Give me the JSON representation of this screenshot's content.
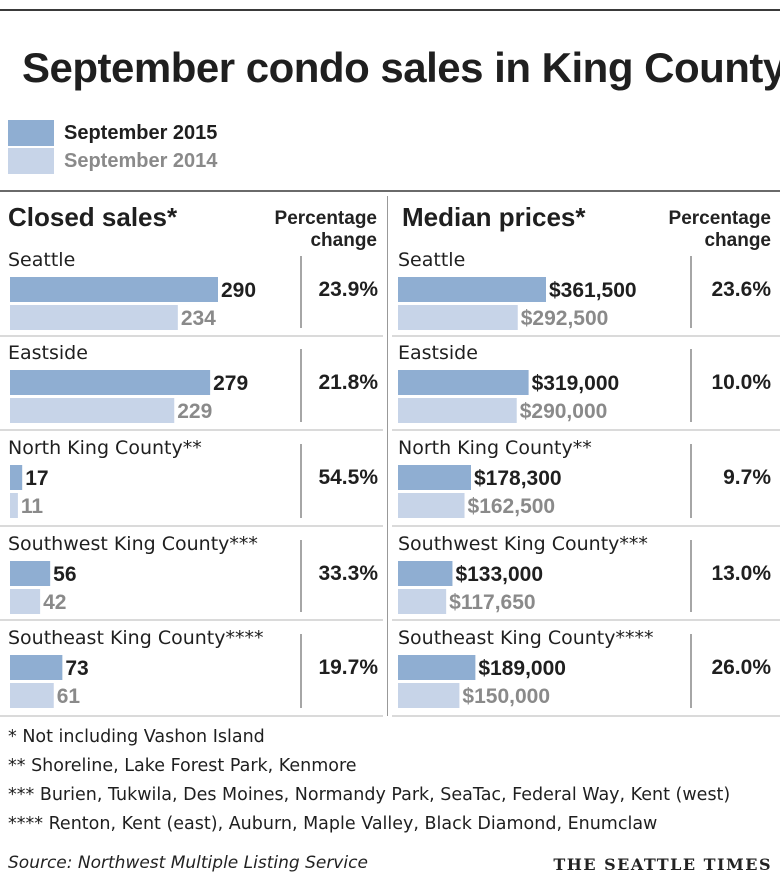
{
  "chart_data": {
    "type": "bar",
    "title": "September condo sales in King County",
    "legend": {
      "items": [
        {
          "label": "September 2015",
          "color": "#8faed2"
        },
        {
          "label": "September 2014",
          "color": "#c7d4e8"
        }
      ]
    },
    "panels": [
      {
        "title": "Closed sales*",
        "change_header": "Percentage change",
        "series": [
          {
            "name": "September 2015",
            "values": [
              290,
              279,
              17,
              56,
              73
            ]
          },
          {
            "name": "September 2014",
            "values": [
              234,
              229,
              11,
              42,
              61
            ]
          }
        ],
        "labels_2015": [
          "290",
          "279",
          "17",
          "56",
          "73"
        ],
        "labels_2014": [
          "234",
          "229",
          "11",
          "42",
          "61"
        ],
        "changes": [
          "23.9%",
          "21.8%",
          "54.5%",
          "33.3%",
          "19.7%"
        ]
      },
      {
        "title": "Median prices*",
        "change_header": "Percentage change",
        "series": [
          {
            "name": "September 2015",
            "values": [
              361500,
              319000,
              178300,
              133000,
              189000
            ]
          },
          {
            "name": "September 2014",
            "values": [
              292500,
              290000,
              162500,
              117650,
              150000
            ]
          }
        ],
        "labels_2015": [
          "$361,500",
          "$319,000",
          "$178,300",
          "$133,000",
          "$189,000"
        ],
        "labels_2014": [
          "$292,500",
          "$290,000",
          "$162,500",
          "$117,650",
          "$150,000"
        ],
        "changes": [
          "23.6%",
          "10.0%",
          "9.7%",
          "13.0%",
          "26.0%"
        ]
      }
    ],
    "categories": [
      "Seattle",
      "Eastside",
      "North King County**",
      "Southwest King County***",
      "Southeast King County****"
    ],
    "colors": {
      "current": "#8faed2",
      "previous": "#c7d4e8",
      "previous_text": "#8a8a8a",
      "current_text": "#1f1f1f"
    }
  },
  "footnotes": [
    "* Not including Vashon Island",
    "**  Shoreline, Lake Forest Park, Kenmore",
    "*** Burien, Tukwila, Des Moines, Normandy Park, SeaTac, Federal Way, Kent (west)",
    "**** Renton, Kent (east), Auburn, Maple Valley, Black Diamond, Enumclaw"
  ],
  "source": "Source: Northwest Multiple Listing Service",
  "credit": "THE SEATTLE TIMES"
}
